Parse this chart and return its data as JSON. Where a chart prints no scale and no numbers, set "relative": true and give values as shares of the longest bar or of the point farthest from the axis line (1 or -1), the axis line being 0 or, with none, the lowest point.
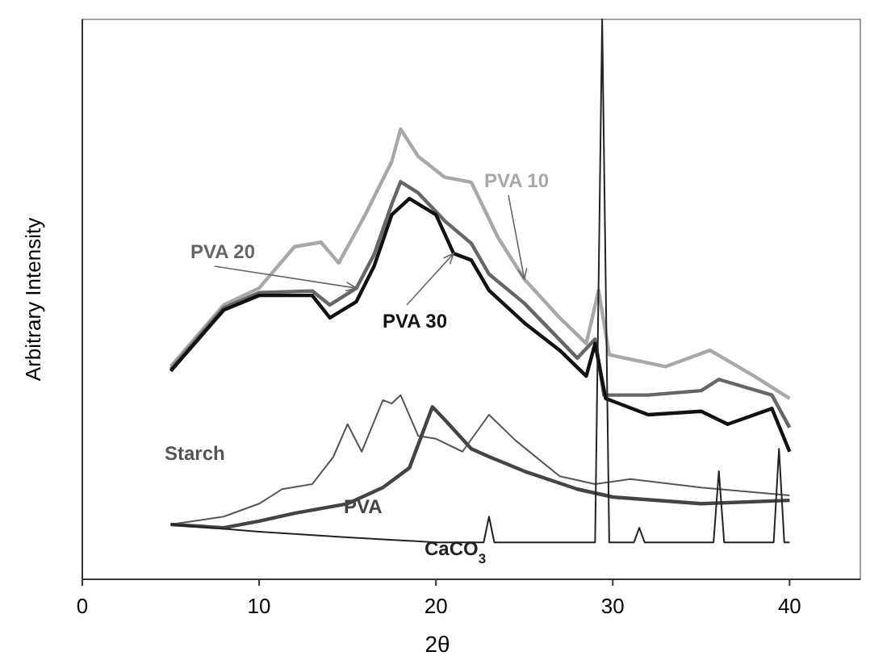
{
  "chart_data": {
    "type": "line",
    "relative": true,
    "xlabel": "2θ",
    "ylabel": "Arbitrary Intensity",
    "xlim": [
      0,
      44
    ],
    "xticks": [
      0,
      10,
      20,
      30,
      40
    ],
    "grid": false,
    "series": [
      {
        "name": "PVA 10",
        "color": "#a8a8a8",
        "x": [
          5,
          8,
          10,
          12,
          13.5,
          14.5,
          16,
          17.5,
          18,
          19,
          20.5,
          22,
          23.5,
          25,
          27,
          28.5,
          29.2,
          29.8,
          33,
          35.5,
          38,
          40
        ],
        "values": [
          0.38,
          0.49,
          0.52,
          0.594,
          0.602,
          0.565,
          0.651,
          0.746,
          0.804,
          0.755,
          0.718,
          0.709,
          0.611,
          0.536,
          0.467,
          0.421,
          0.516,
          0.401,
          0.38,
          0.409,
          0.363,
          0.323
        ]
      },
      {
        "name": "PVA 20",
        "color": "#666666",
        "x": [
          5,
          8,
          10,
          13,
          14,
          15.5,
          16.5,
          17.5,
          18,
          19,
          20.5,
          22,
          23,
          25,
          28,
          29,
          29.5,
          32,
          35,
          36,
          39,
          40
        ],
        "values": [
          0.375,
          0.485,
          0.512,
          0.515,
          0.49,
          0.52,
          0.58,
          0.67,
          0.71,
          0.69,
          0.64,
          0.6,
          0.545,
          0.493,
          0.395,
          0.429,
          0.329,
          0.329,
          0.337,
          0.357,
          0.329,
          0.271
        ]
      },
      {
        "name": "PVA 30",
        "color": "#111111",
        "x": [
          5,
          8,
          10,
          13,
          14,
          15.5,
          16.5,
          17.5,
          18.5,
          20,
          21,
          22,
          23,
          25,
          27,
          28.5,
          29,
          29.6,
          32,
          35,
          36.5,
          39,
          40
        ],
        "values": [
          0.372,
          0.481,
          0.507,
          0.507,
          0.467,
          0.496,
          0.559,
          0.651,
          0.68,
          0.651,
          0.582,
          0.57,
          0.516,
          0.458,
          0.409,
          0.363,
          0.421,
          0.323,
          0.294,
          0.3,
          0.277,
          0.305,
          0.228
        ]
      },
      {
        "name": "Starch",
        "color": "#555555",
        "x": [
          5,
          8,
          10,
          11.3,
          13,
          14.2,
          15,
          15.8,
          17,
          17.5,
          18,
          19,
          20,
          21.5,
          23,
          24.5,
          27,
          29,
          31,
          35,
          40
        ],
        "values": [
          0.098,
          0.112,
          0.135,
          0.161,
          0.17,
          0.219,
          0.277,
          0.228,
          0.32,
          0.314,
          0.329,
          0.256,
          0.251,
          0.228,
          0.294,
          0.248,
          0.184,
          0.17,
          0.179,
          0.164,
          0.15
        ]
      },
      {
        "name": "PVA",
        "color": "#444444",
        "x": [
          5,
          8,
          10,
          12,
          15,
          17,
          18.5,
          19.8,
          20.5,
          22,
          23,
          25,
          28,
          30,
          35,
          40
        ],
        "values": [
          0.098,
          0.092,
          0.104,
          0.118,
          0.135,
          0.164,
          0.199,
          0.308,
          0.285,
          0.233,
          0.219,
          0.193,
          0.161,
          0.147,
          0.135,
          0.141
        ]
      },
      {
        "name": "CaCO$_{3}$",
        "color": "#222222",
        "x": [
          5,
          10,
          15,
          20,
          22.7,
          23,
          23.3,
          26,
          29,
          29.4,
          29.8,
          31.2,
          31.5,
          31.8,
          35.7,
          36,
          36.3,
          39.1,
          39.4,
          39.7,
          40
        ],
        "values": [
          0.098,
          0.085,
          0.075,
          0.066,
          0.066,
          0.112,
          0.066,
          0.066,
          0.066,
          1,
          0.066,
          0.066,
          0.092,
          0.066,
          0.066,
          0.193,
          0.066,
          0.066,
          0.233,
          0.066,
          0.066
        ]
      }
    ]
  }
}
